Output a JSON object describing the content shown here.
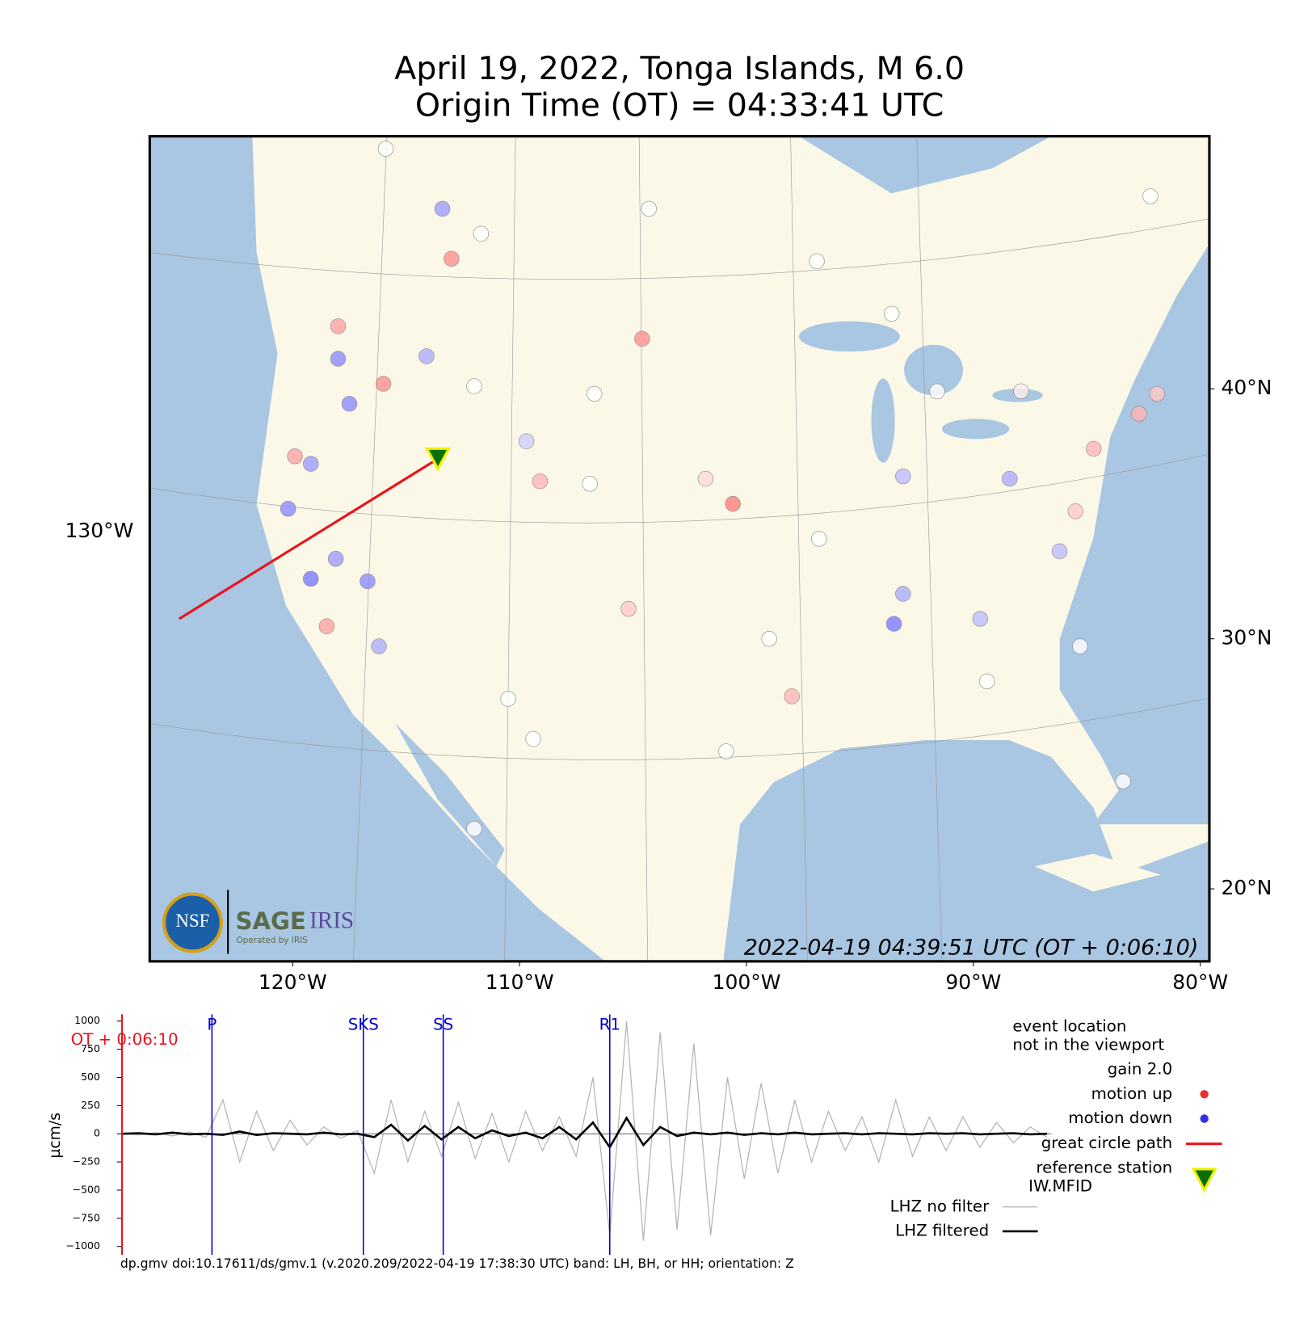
{
  "header": {
    "title_line1": "April 19, 2022, Tonga Islands, M 6.0",
    "title_line2": "Origin Time (OT) = 04:33:41 UTC"
  },
  "map": {
    "xlim": [
      -126.3,
      -79.6
    ],
    "ylim": [
      17.1,
      50.1
    ],
    "xticks": [
      {
        "value": -120,
        "label": "120°W"
      },
      {
        "value": -110,
        "label": "110°W"
      },
      {
        "value": -100,
        "label": "100°W"
      },
      {
        "value": -90,
        "label": "90°W"
      },
      {
        "value": -80,
        "label": "80°W"
      }
    ],
    "yticks": [
      {
        "value": 40,
        "label": "40°N"
      },
      {
        "value": 30,
        "label": "30°N"
      },
      {
        "value": 20,
        "label": "20°N"
      }
    ],
    "left_tick_label": "130°W",
    "timestamp": "2022-04-19 04:39:51 UTC (OT + 0:06:10)",
    "logo": {
      "nsf": "NSF",
      "sage": "SAGE",
      "iris": "IRIS",
      "operated": "Operated by IRIS"
    },
    "stations": {
      "lon": [
        -113.4,
        -113.0,
        -111.7,
        -104.3,
        -104.6,
        -115.9,
        -118.0,
        -118.0,
        -117.5,
        -119.9,
        -119.2,
        -120.2,
        -119.2,
        -116.7,
        -118.1,
        -118.5,
        -116.2,
        -114.1,
        -116.0,
        -112.0,
        -109.7,
        -109.1,
        -100.6,
        -101.8,
        -93.5,
        -93.1,
        -89.7,
        -93.1,
        -88.4,
        -84.7,
        -82.7,
        -81.9,
        -82.2,
        -93.6,
        -96.9,
        -106.7,
        -106.9,
        -105.2,
        -98.0,
        -85.5,
        -86.2,
        -87.9,
        -91.6,
        -96.8,
        -99.0,
        -85.3,
        -83.4,
        -100.9,
        -110.5,
        -112.0,
        -109.4,
        -89.4
      ],
      "lat": [
        47.2,
        45.2,
        46.2,
        47.2,
        42.0,
        49.6,
        42.5,
        41.2,
        39.4,
        37.3,
        37.0,
        35.2,
        32.4,
        32.3,
        33.2,
        30.5,
        29.7,
        41.3,
        40.2,
        40.1,
        37.9,
        36.3,
        35.4,
        36.4,
        30.6,
        31.8,
        30.8,
        36.5,
        36.4,
        37.6,
        39.0,
        39.8,
        47.7,
        43.0,
        45.1,
        39.8,
        36.2,
        31.2,
        27.7,
        35.1,
        33.5,
        39.9,
        39.9,
        34.0,
        30.0,
        29.7,
        24.3,
        25.5,
        27.6,
        22.4,
        26.0,
        28.3
      ],
      "motion": [
        -0.6,
        0.6,
        0,
        0,
        0.6,
        0,
        0.5,
        -0.7,
        -0.7,
        0.5,
        -0.6,
        -0.7,
        -0.8,
        -0.7,
        -0.6,
        0.5,
        -0.5,
        -0.5,
        0.6,
        0,
        -0.3,
        0.4,
        0.7,
        0.2,
        -0.8,
        -0.5,
        -0.4,
        -0.4,
        -0.5,
        0.4,
        0.4,
        0.3,
        0,
        0,
        0,
        0,
        0,
        0.3,
        0.4,
        0.3,
        -0.4,
        0.1,
        0,
        0,
        0,
        0,
        0,
        0,
        0,
        0,
        0,
        0
      ]
    },
    "reference_station": {
      "lon": -113.6,
      "lat": 37.2
    },
    "great_circle": {
      "lon": [
        -125.0,
        -113.6
      ],
      "lat": [
        30.8,
        37.2
      ]
    }
  },
  "chart_data": {
    "type": "line",
    "ylabel": "µcm/s",
    "ylim": [
      -1000,
      1000
    ],
    "yticks": [
      {
        "value": -1000,
        "label": "−1000"
      },
      {
        "value": -750,
        "label": "−750"
      },
      {
        "value": -500,
        "label": "−500"
      },
      {
        "value": -250,
        "label": "−250"
      },
      0,
      250,
      500,
      750,
      1000
    ],
    "xlim": [
      0,
      1105
    ],
    "x": [
      0,
      20,
      40,
      60,
      80,
      100,
      120,
      140,
      160,
      180,
      200,
      220,
      240,
      260,
      280,
      300,
      320,
      340,
      360,
      380,
      400,
      420,
      440,
      460,
      480,
      500,
      520,
      540,
      560,
      580,
      600,
      620,
      640,
      660,
      680,
      700,
      720,
      740,
      760,
      780,
      800,
      820,
      840,
      860,
      880,
      900,
      920,
      940,
      960,
      980,
      1000,
      1020,
      1040,
      1060,
      1080,
      1100
    ],
    "series": [
      {
        "name": "LHZ no filter",
        "color": "#b4b4b4",
        "values": [
          0,
          -10,
          10,
          -20,
          15,
          -30,
          300,
          -250,
          200,
          -150,
          120,
          -100,
          60,
          -40,
          30,
          -350,
          300,
          -250,
          200,
          -200,
          280,
          -220,
          180,
          -250,
          200,
          -150,
          150,
          -200,
          500,
          -900,
          1000,
          -950,
          900,
          -850,
          800,
          -900,
          500,
          -400,
          450,
          -350,
          300,
          -250,
          200,
          -150,
          150,
          -250,
          300,
          -200,
          150,
          -150,
          150,
          -120,
          100,
          -80,
          60,
          -30
        ]
      },
      {
        "name": "LHZ filtered",
        "color": "#000000",
        "values": [
          0,
          5,
          -5,
          10,
          -5,
          0,
          -10,
          20,
          -10,
          5,
          0,
          -5,
          10,
          -5,
          0,
          -30,
          80,
          -60,
          70,
          -50,
          60,
          -40,
          30,
          -20,
          10,
          -40,
          60,
          -50,
          100,
          -120,
          140,
          -100,
          60,
          -20,
          10,
          -5,
          10,
          -10,
          5,
          -5,
          10,
          -5,
          0,
          5,
          -5,
          5,
          0,
          -5,
          5,
          0,
          5,
          -5,
          0,
          5,
          -5,
          0
        ]
      }
    ],
    "phases": {
      "labels": [
        "P",
        "SKS",
        "SS",
        "R1"
      ],
      "x": [
        107,
        287,
        382,
        580
      ]
    },
    "ot_label": "OT + 0:06:10",
    "ot_x": 0,
    "notes": [
      "event location",
      "not in the viewport",
      "gain  2.0"
    ],
    "legend": {
      "motion_up": "motion up",
      "motion_down": "motion down",
      "great_circle": "great circle path",
      "reference_station": "reference station",
      "station_code": "IW.MFID"
    },
    "footer": "dp.gmv doi:10.17611/ds/gmv.1 (v.2020.209/2022-04-19 17:38:30 UTC) band: LH, BH, or HH; orientation: Z"
  }
}
